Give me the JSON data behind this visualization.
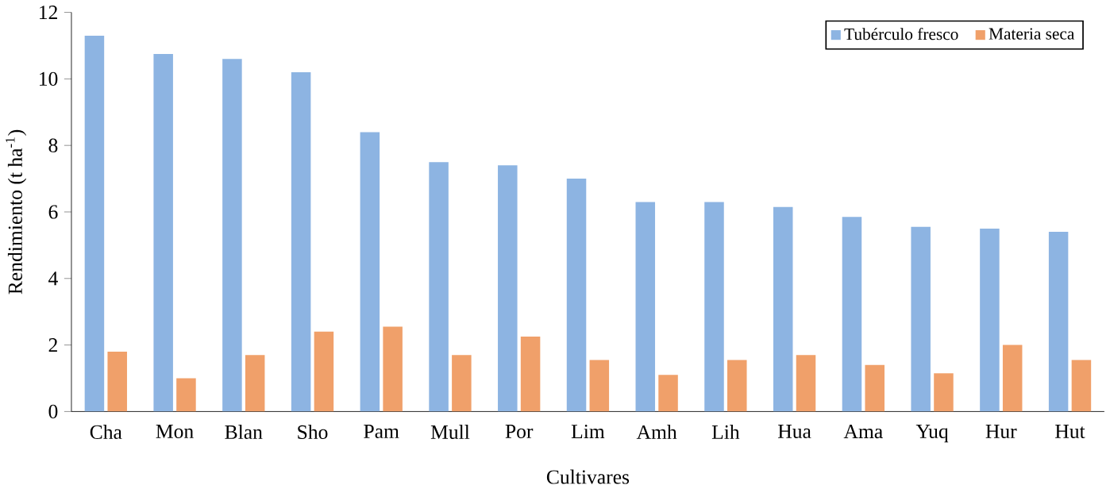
{
  "chart_data": {
    "type": "bar",
    "xlabel": "Cultivares",
    "ylabel": "Rendimiento (t ha$^{-1}$)",
    "categories": [
      "Cha",
      "Mon",
      "Blan",
      "Sho",
      "Pam",
      "Mull",
      "Por",
      "Lim",
      "Amh",
      "Lih",
      "Hua",
      "Ama",
      "Yuq",
      "Hur",
      "Hut"
    ],
    "series": [
      {
        "name": "Tubérculo fresco",
        "color": "#8db4e2",
        "values": [
          11.3,
          10.75,
          10.6,
          10.2,
          8.4,
          7.5,
          7.4,
          7.0,
          6.3,
          6.3,
          6.15,
          5.85,
          5.55,
          5.5,
          5.4
        ]
      },
      {
        "name": "Materia seca",
        "color": "#f0a06a",
        "values": [
          1.8,
          1.0,
          1.7,
          2.4,
          2.55,
          1.7,
          2.25,
          1.55,
          1.1,
          1.55,
          1.7,
          1.4,
          1.15,
          2.0,
          1.55
        ]
      }
    ],
    "ylim": [
      0,
      12
    ],
    "yticks": [
      0,
      2,
      4,
      6,
      8,
      10,
      12
    ],
    "grid": false,
    "legend": "top right"
  }
}
